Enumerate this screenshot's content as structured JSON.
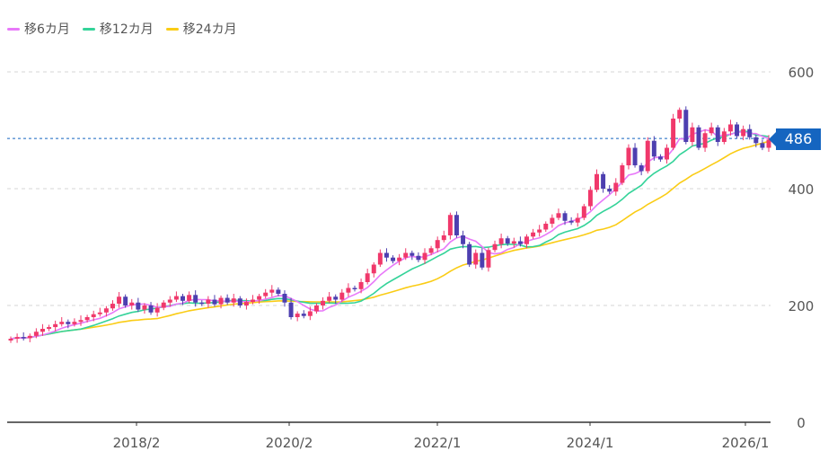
{
  "legend": [
    {
      "label": "移6カ月",
      "color": "#e879f9"
    },
    {
      "label": "移12カ月",
      "color": "#34d399"
    },
    {
      "label": "移24カ月",
      "color": "#facc15"
    }
  ],
  "current_price": "486",
  "chart_data": {
    "type": "candlestick",
    "ylim": [
      0,
      640
    ],
    "y_ticks": [
      0,
      200,
      400,
      600
    ],
    "x_ticks": [
      "2018/2",
      "2020/2",
      "2022/1",
      "2024/1",
      "2026/1"
    ],
    "current_value": 486,
    "candle_colors": {
      "up": "#f0386b",
      "down": "#4d3fb0"
    },
    "candles": [
      {
        "o": 140,
        "c": 143
      },
      {
        "o": 143,
        "c": 146
      },
      {
        "o": 146,
        "c": 144
      },
      {
        "o": 144,
        "c": 148
      },
      {
        "o": 148,
        "c": 155
      },
      {
        "o": 155,
        "c": 160
      },
      {
        "o": 160,
        "c": 163
      },
      {
        "o": 163,
        "c": 168
      },
      {
        "o": 168,
        "c": 172
      },
      {
        "o": 172,
        "c": 168
      },
      {
        "o": 168,
        "c": 172
      },
      {
        "o": 172,
        "c": 175
      },
      {
        "o": 175,
        "c": 180
      },
      {
        "o": 180,
        "c": 185
      },
      {
        "o": 185,
        "c": 188
      },
      {
        "o": 188,
        "c": 195
      },
      {
        "o": 195,
        "c": 203
      },
      {
        "o": 203,
        "c": 215
      },
      {
        "o": 215,
        "c": 200
      },
      {
        "o": 200,
        "c": 205
      },
      {
        "o": 205,
        "c": 193
      },
      {
        "o": 193,
        "c": 200
      },
      {
        "o": 200,
        "c": 188
      },
      {
        "o": 188,
        "c": 196
      },
      {
        "o": 196,
        "c": 205
      },
      {
        "o": 205,
        "c": 210
      },
      {
        "o": 210,
        "c": 216
      },
      {
        "o": 216,
        "c": 208
      },
      {
        "o": 208,
        "c": 218
      },
      {
        "o": 218,
        "c": 205
      },
      {
        "o": 205,
        "c": 203
      },
      {
        "o": 203,
        "c": 210
      },
      {
        "o": 210,
        "c": 202
      },
      {
        "o": 202,
        "c": 213
      },
      {
        "o": 213,
        "c": 205
      },
      {
        "o": 205,
        "c": 212
      },
      {
        "o": 212,
        "c": 200
      },
      {
        "o": 200,
        "c": 206
      },
      {
        "o": 206,
        "c": 210
      },
      {
        "o": 210,
        "c": 216
      },
      {
        "o": 216,
        "c": 222
      },
      {
        "o": 222,
        "c": 227
      },
      {
        "o": 227,
        "c": 220
      },
      {
        "o": 220,
        "c": 205
      },
      {
        "o": 205,
        "c": 180
      },
      {
        "o": 180,
        "c": 186
      },
      {
        "o": 186,
        "c": 182
      },
      {
        "o": 182,
        "c": 190
      },
      {
        "o": 190,
        "c": 200
      },
      {
        "o": 200,
        "c": 208
      },
      {
        "o": 208,
        "c": 215
      },
      {
        "o": 215,
        "c": 210
      },
      {
        "o": 210,
        "c": 222
      },
      {
        "o": 222,
        "c": 230
      },
      {
        "o": 230,
        "c": 228
      },
      {
        "o": 228,
        "c": 240
      },
      {
        "o": 240,
        "c": 255
      },
      {
        "o": 255,
        "c": 270
      },
      {
        "o": 270,
        "c": 290
      },
      {
        "o": 290,
        "c": 282
      },
      {
        "o": 282,
        "c": 276
      },
      {
        "o": 276,
        "c": 282
      },
      {
        "o": 282,
        "c": 290
      },
      {
        "o": 290,
        "c": 285
      },
      {
        "o": 285,
        "c": 278
      },
      {
        "o": 278,
        "c": 290
      },
      {
        "o": 290,
        "c": 298
      },
      {
        "o": 298,
        "c": 312
      },
      {
        "o": 312,
        "c": 320
      },
      {
        "o": 320,
        "c": 355
      },
      {
        "o": 355,
        "c": 320
      },
      {
        "o": 320,
        "c": 305
      },
      {
        "o": 305,
        "c": 270
      },
      {
        "o": 270,
        "c": 290
      },
      {
        "o": 290,
        "c": 265
      },
      {
        "o": 265,
        "c": 295
      },
      {
        "o": 295,
        "c": 305
      },
      {
        "o": 305,
        "c": 315
      },
      {
        "o": 315,
        "c": 306
      },
      {
        "o": 306,
        "c": 310
      },
      {
        "o": 310,
        "c": 305
      },
      {
        "o": 305,
        "c": 318
      },
      {
        "o": 318,
        "c": 325
      },
      {
        "o": 325,
        "c": 330
      },
      {
        "o": 330,
        "c": 340
      },
      {
        "o": 340,
        "c": 350
      },
      {
        "o": 350,
        "c": 358
      },
      {
        "o": 358,
        "c": 345
      },
      {
        "o": 345,
        "c": 342
      },
      {
        "o": 342,
        "c": 350
      },
      {
        "o": 350,
        "c": 370
      },
      {
        "o": 370,
        "c": 398
      },
      {
        "o": 398,
        "c": 425
      },
      {
        "o": 425,
        "c": 400
      },
      {
        "o": 400,
        "c": 395
      },
      {
        "o": 395,
        "c": 410
      },
      {
        "o": 410,
        "c": 440
      },
      {
        "o": 440,
        "c": 470
      },
      {
        "o": 470,
        "c": 440
      },
      {
        "o": 440,
        "c": 430
      },
      {
        "o": 430,
        "c": 482
      },
      {
        "o": 482,
        "c": 455
      },
      {
        "o": 455,
        "c": 450
      },
      {
        "o": 450,
        "c": 470
      },
      {
        "o": 470,
        "c": 520
      },
      {
        "o": 520,
        "c": 535
      },
      {
        "o": 535,
        "c": 480
      },
      {
        "o": 480,
        "c": 505
      },
      {
        "o": 505,
        "c": 470
      },
      {
        "o": 470,
        "c": 495
      },
      {
        "o": 495,
        "c": 505
      },
      {
        "o": 505,
        "c": 480
      },
      {
        "o": 480,
        "c": 498
      },
      {
        "o": 498,
        "c": 510
      },
      {
        "o": 510,
        "c": 490
      },
      {
        "o": 490,
        "c": 502
      },
      {
        "o": 502,
        "c": 488
      },
      {
        "o": 488,
        "c": 478
      },
      {
        "o": 478,
        "c": 470
      },
      {
        "o": 470,
        "c": 484
      }
    ]
  }
}
